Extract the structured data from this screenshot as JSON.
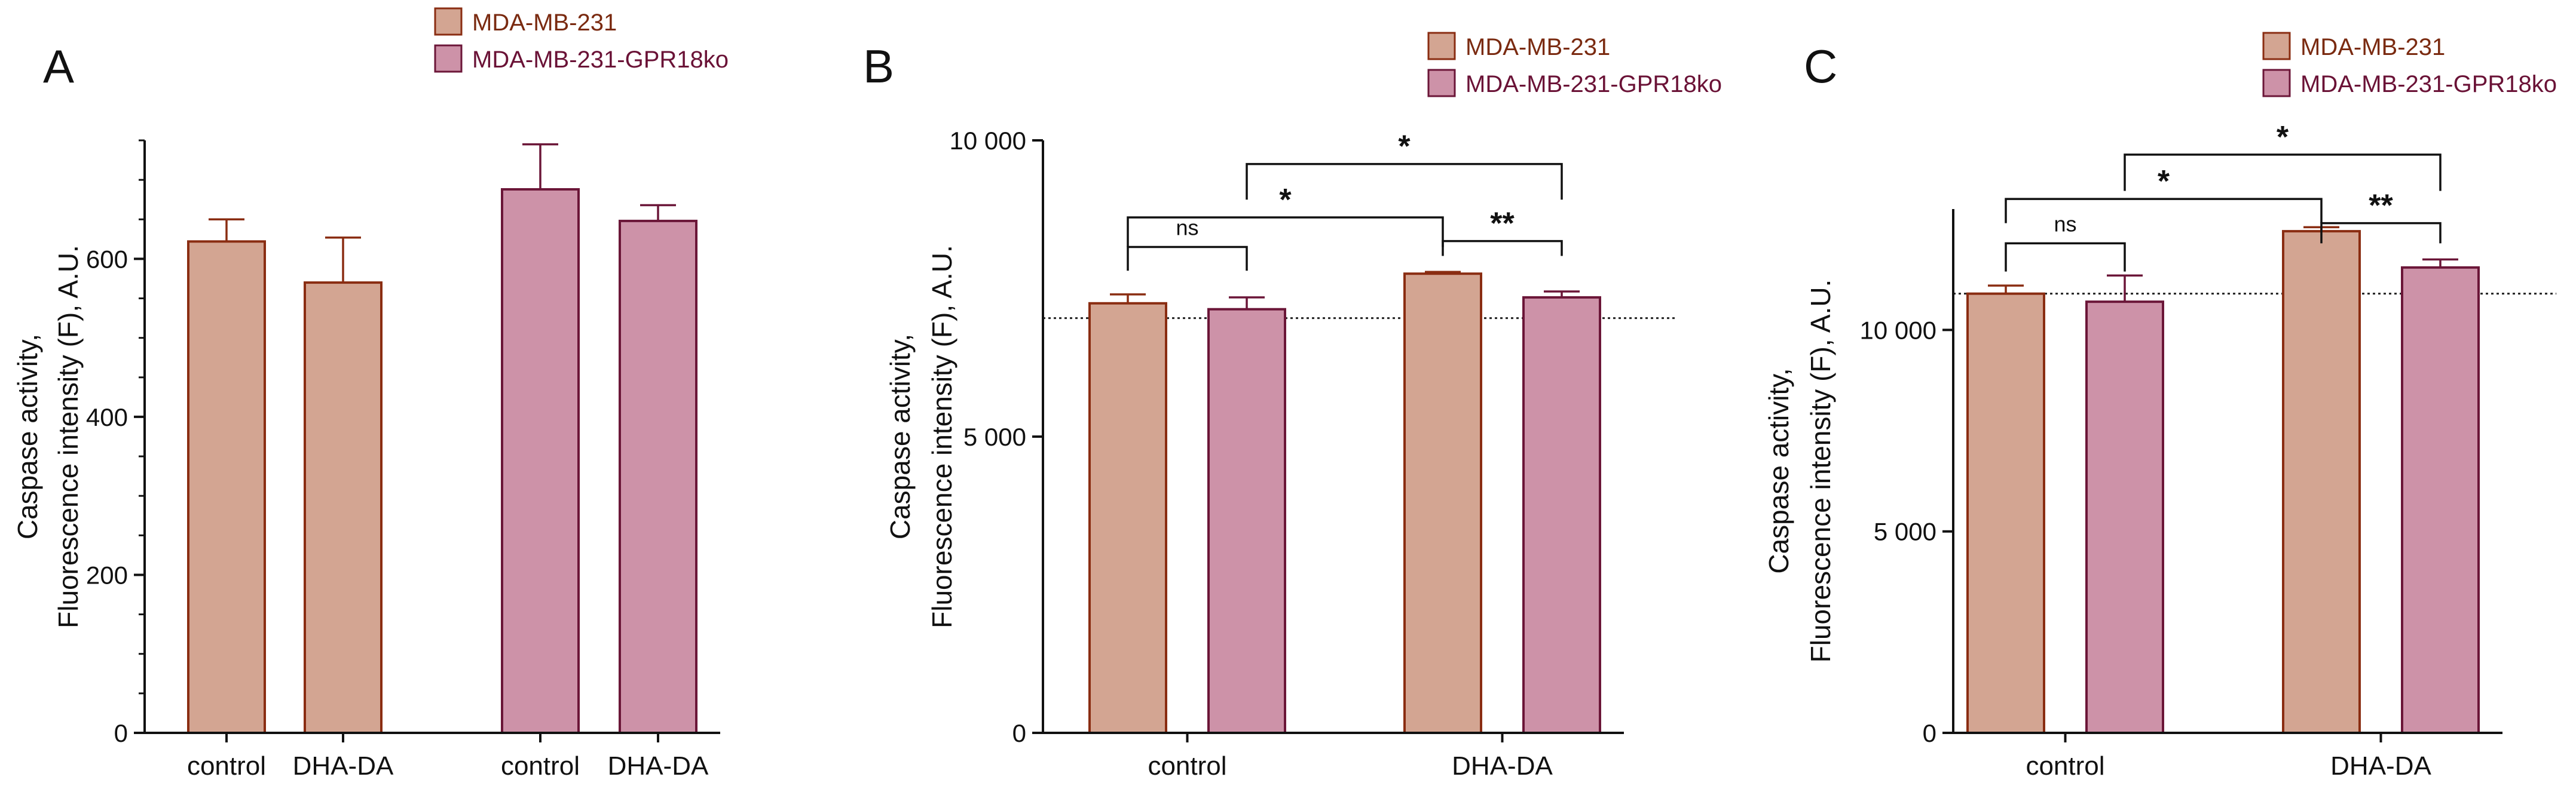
{
  "colors": {
    "series1_fill": "#d3a592",
    "series1_stroke": "#8a2d12",
    "series2_fill": "#cd92a8",
    "series2_stroke": "#6b1638",
    "legend1_text": "#7a2a10",
    "legend2_text": "#6a1236",
    "axis": "#111111",
    "bracket": "#111111",
    "reference_line": "#222222"
  },
  "chart_data": [
    {
      "panel": "A",
      "type": "bar",
      "ylabel": [
        "Caspase activity,",
        "Fluorescence intensity (F), A.U."
      ],
      "ylim": [
        0,
        750
      ],
      "yticks": [
        0,
        200,
        400,
        600
      ],
      "ytick_labels": [
        "0",
        "200",
        "400",
        "600"
      ],
      "minor_ticks": true,
      "legend": [
        "MDA-MB-231",
        "MDA-MB-231-GPR18ko"
      ],
      "legend_position": "top-center",
      "bars": [
        {
          "label": "control",
          "series": 0,
          "value": 622,
          "error": 28
        },
        {
          "label": "DHA-DA",
          "series": 0,
          "value": 570,
          "error": 57
        },
        {
          "label": "control",
          "series": 1,
          "value": 688,
          "error": 57
        },
        {
          "label": "DHA-DA",
          "series": 1,
          "value": 648,
          "error": 20
        }
      ],
      "reference_line": null,
      "annotations": []
    },
    {
      "panel": "B",
      "type": "bar",
      "ylabel": [
        "Caspase activity,",
        "Fluorescence intensity (F), A.U."
      ],
      "ylim": [
        0,
        10000
      ],
      "yticks": [
        0,
        5000,
        10000
      ],
      "ytick_labels": [
        "0",
        "5 000",
        "10 000"
      ],
      "minor_ticks": false,
      "legend": [
        "MDA-MB-231",
        "MDA-MB-231-GPR18ko"
      ],
      "legend_position": "top-right",
      "categories": [
        "control",
        "DHA-DA"
      ],
      "series": [
        {
          "name": "MDA-MB-231",
          "values": [
            7250,
            7750
          ],
          "errors": [
            150,
            30
          ]
        },
        {
          "name": "MDA-MB-231-GPR18ko",
          "values": [
            7150,
            7350
          ],
          "errors": [
            200,
            100
          ]
        }
      ],
      "reference_line": 7000,
      "annotations": [
        {
          "text": "ns",
          "from": [
            0,
            0
          ],
          "to": [
            0,
            1
          ],
          "level": 8200,
          "drop": 400
        },
        {
          "text": "*",
          "from": [
            0,
            0
          ],
          "to": [
            1,
            0
          ],
          "level": 8700,
          "drop": 500
        },
        {
          "text": "**",
          "from": [
            1,
            0
          ],
          "to": [
            1,
            1
          ],
          "level": 8300,
          "drop": 250
        },
        {
          "text": "*",
          "from": [
            0,
            1
          ],
          "to": [
            1,
            1
          ],
          "level": 9600,
          "drop": 600
        }
      ]
    },
    {
      "panel": "C",
      "type": "bar",
      "ylabel": [
        "Caspase activity,",
        "Fluorescence intensity (F), A.U."
      ],
      "ylim": [
        0,
        13000
      ],
      "yticks": [
        0,
        5000,
        10000
      ],
      "ytick_labels": [
        "0",
        "5 000",
        "10 000"
      ],
      "minor_ticks": false,
      "legend": [
        "MDA-MB-231",
        "MDA-MB-231-GPR18ko"
      ],
      "legend_position": "top-right",
      "categories": [
        "control",
        "DHA-DA"
      ],
      "series": [
        {
          "name": "MDA-MB-231",
          "values": [
            10900,
            12450
          ],
          "errors": [
            200,
            100
          ]
        },
        {
          "name": "MDA-MB-231-GPR18ko",
          "values": [
            10700,
            11550
          ],
          "errors": [
            650,
            200
          ]
        }
      ],
      "reference_line": 10900,
      "annotations": [
        {
          "text": "ns",
          "from": [
            0,
            0
          ],
          "to": [
            0,
            1
          ],
          "level": 12150,
          "drop": 700
        },
        {
          "text": "*",
          "from": [
            0,
            0
          ],
          "to": [
            1,
            0
          ],
          "level": 13250,
          "drop": 600
        },
        {
          "text": "**",
          "from": [
            1,
            0
          ],
          "to": [
            1,
            1
          ],
          "level": 12650,
          "drop": 500
        },
        {
          "text": "*",
          "from": [
            0,
            1
          ],
          "to": [
            1,
            1
          ],
          "level": 14350,
          "drop": 900
        }
      ]
    }
  ]
}
